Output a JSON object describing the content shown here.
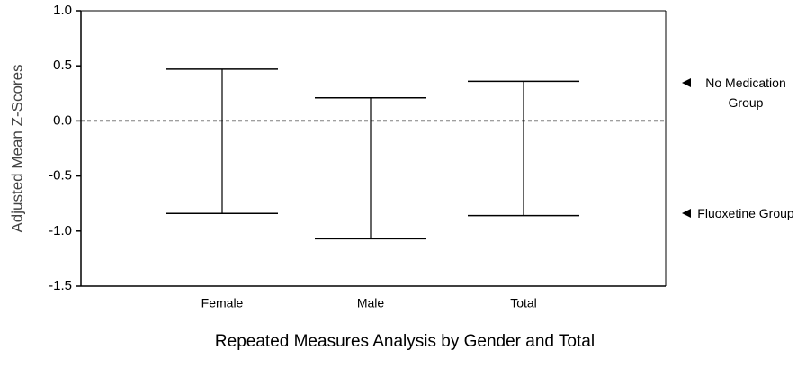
{
  "chart_data": {
    "type": "range",
    "title": "Repeated Measures Analysis by Gender and Total",
    "y_label": "Adjusted Mean Z-Scores",
    "categories": [
      "Female",
      "Male",
      "Total"
    ],
    "series": [
      {
        "name": "No Medication Group",
        "color": "#000000",
        "values": [
          0.47,
          0.21,
          0.36
        ]
      },
      {
        "name": "Fluoxetine Group",
        "color": "#000000",
        "values": [
          -0.84,
          -1.07,
          -0.86
        ]
      }
    ],
    "reference_line": 0,
    "ylim": [
      -1.5,
      1.0
    ],
    "yticks": [
      {
        "value": 1.0,
        "label": "1.0"
      },
      {
        "value": 0.5,
        "label": "0.5"
      },
      {
        "value": 0,
        "label": "0.0"
      },
      {
        "value": -0.5,
        "label": "-0.5"
      },
      {
        "value": -1.0,
        "label": "-1.0"
      },
      {
        "value": -1.5,
        "label": "-1.5"
      }
    ]
  }
}
